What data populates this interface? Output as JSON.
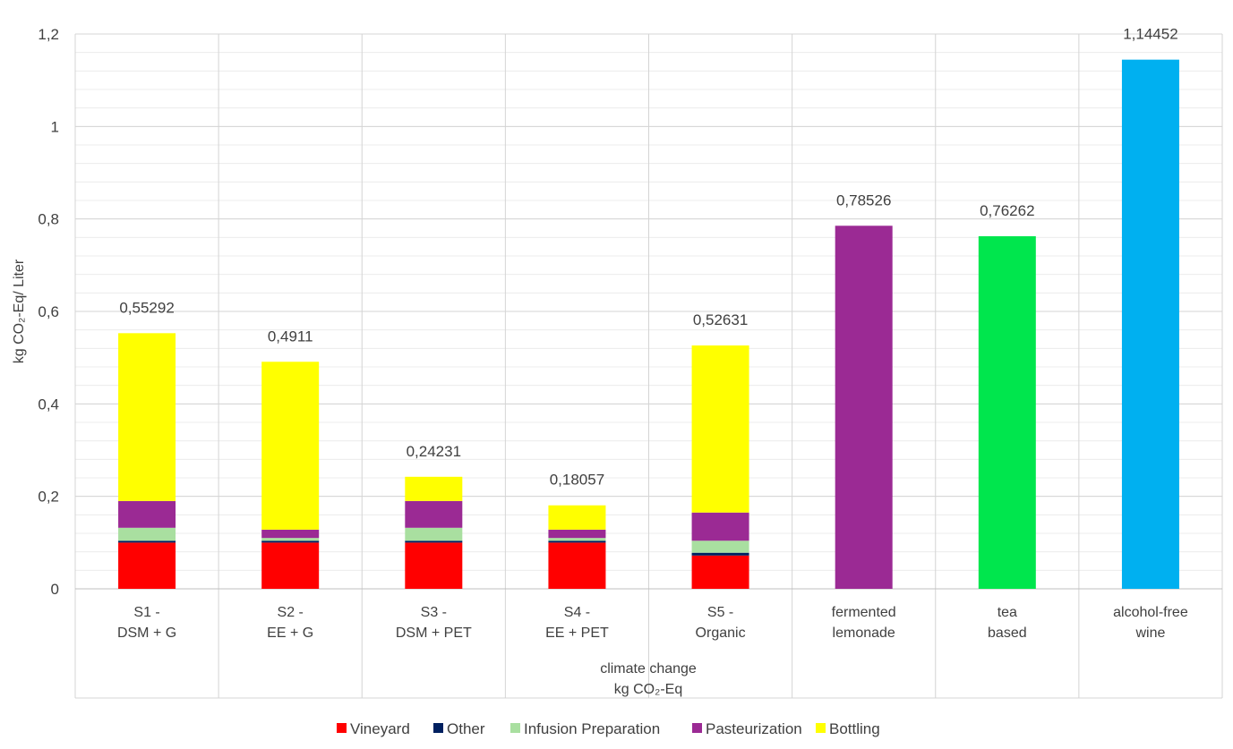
{
  "chart_data": {
    "type": "bar",
    "stacked": true,
    "categories": [
      [
        "S1 -",
        "DSM + G"
      ],
      [
        "S2 -",
        "EE + G"
      ],
      [
        "S3 -",
        "DSM + PET"
      ],
      [
        "S4 -",
        "EE + PET"
      ],
      [
        "S5 -",
        "Organic"
      ],
      [
        "fermented",
        "lemonade"
      ],
      [
        "tea",
        "based"
      ],
      [
        "alcohol-free",
        "wine"
      ]
    ],
    "series": [
      {
        "name": "Vineyard",
        "color": "#FF0000",
        "values": [
          0.1,
          0.1,
          0.1,
          0.1,
          0.072,
          0,
          0,
          0
        ]
      },
      {
        "name": "Other",
        "color": "#002060",
        "values": [
          0.004,
          0.004,
          0.004,
          0.004,
          0.006,
          0,
          0,
          0
        ]
      },
      {
        "name": "Infusion Preparation",
        "color": "#A9DFA0",
        "values": [
          0.028,
          0.006,
          0.028,
          0.006,
          0.026,
          0,
          0,
          0
        ]
      },
      {
        "name": "Pasteurization",
        "color": "#9B2A94",
        "values": [
          0.058,
          0.018,
          0.058,
          0.018,
          0.061,
          0.78526,
          0,
          0
        ]
      },
      {
        "name": "Bottling",
        "color": "#FFFF00",
        "values": [
          0.36292,
          0.3631,
          0.05231,
          0.05257,
          0.36131,
          0,
          0,
          0
        ]
      }
    ],
    "single_bar_colors": {
      "tea based": "#00E64D",
      "alcohol-free wine": "#00B0F0"
    },
    "other_values": {
      "tea based": 0.76262,
      "alcohol-free wine": 1.14452
    },
    "totals": [
      "0,55292",
      "0,4911",
      "0,24231",
      "0,18057",
      "0,52631",
      "0,78526",
      "0,76262",
      "1,14452"
    ],
    "total_values": [
      0.55292,
      0.4911,
      0.24231,
      0.18057,
      0.52631,
      0.78526,
      0.76262,
      1.14452
    ],
    "ylabel": "kg CO₂-Eq/ Liter",
    "xlabel": [
      "climate change",
      "kg CO₂-Eq"
    ],
    "ylim": [
      0,
      1.2
    ],
    "yticks": [
      "0",
      "0,2",
      "0,4",
      "0,6",
      "0,8",
      "1",
      "1,2"
    ],
    "ytick_values": [
      0,
      0.2,
      0.4,
      0.6,
      0.8,
      1.0,
      1.2
    ],
    "legend_position": "bottom",
    "grid": true
  }
}
